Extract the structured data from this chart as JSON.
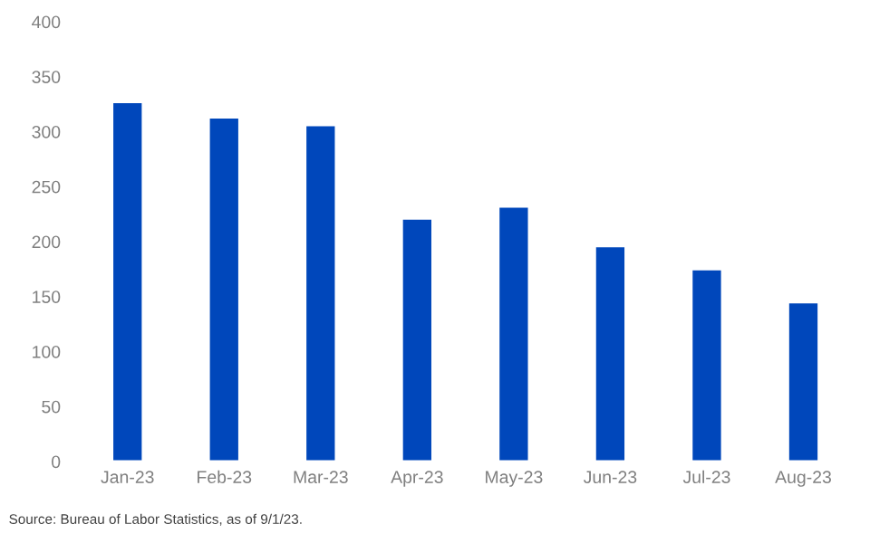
{
  "chart_data": {
    "type": "bar",
    "categories": [
      "Jan-23",
      "Feb-23",
      "Mar-23",
      "Apr-23",
      "May-23",
      "Jun-23",
      "Jul-23",
      "Aug-23"
    ],
    "values": [
      327,
      313,
      306,
      221,
      232,
      196,
      175,
      145
    ],
    "color": "#0047bb",
    "ylim": [
      0,
      400
    ],
    "yticks": [
      0,
      50,
      100,
      150,
      200,
      250,
      300,
      350,
      400
    ],
    "grid": false,
    "annotations": [
      "Source: Bureau of Labor Statistics, as of 9/1/23."
    ]
  }
}
